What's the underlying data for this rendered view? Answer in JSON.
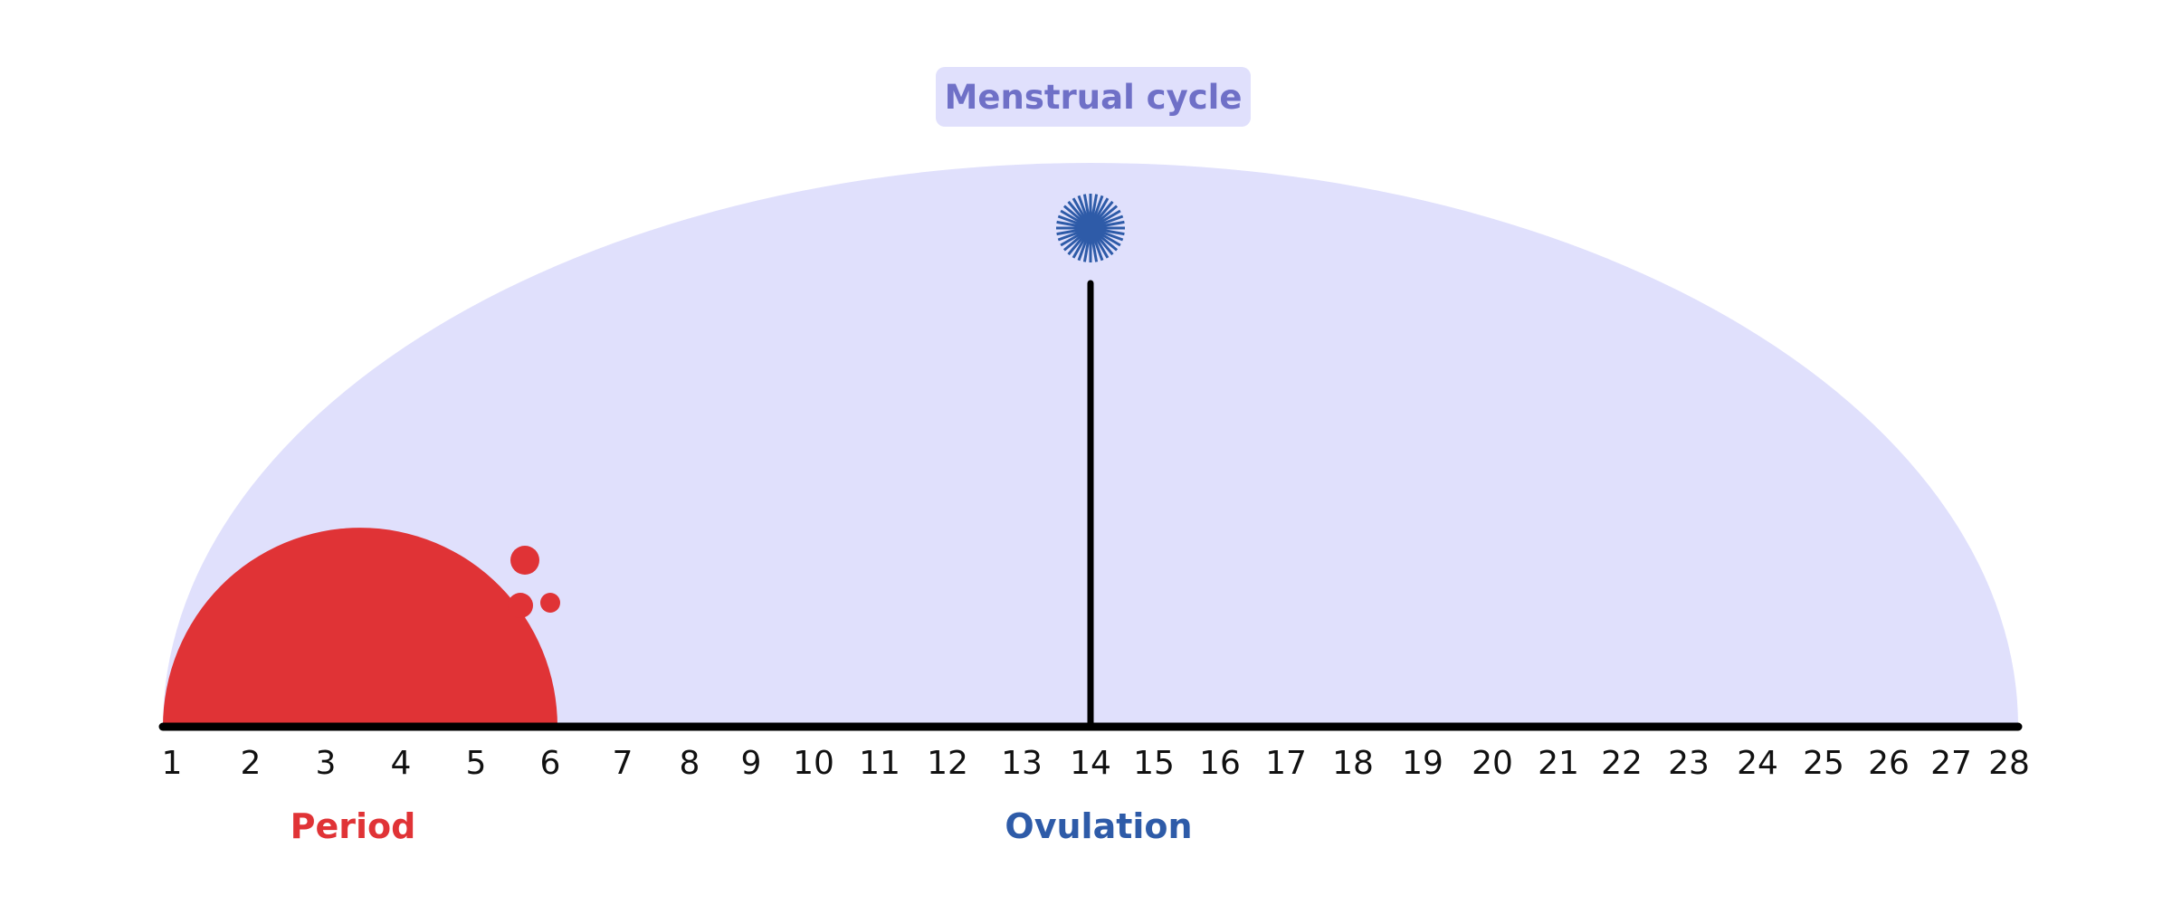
{
  "diagram": {
    "title": "Menstrual cycle",
    "days": [
      "1",
      "2",
      "3",
      "4",
      "5",
      "6",
      "7",
      "8",
      "9",
      "10",
      "11",
      "12",
      "13",
      "14",
      "15",
      "16",
      "17",
      "18",
      "19",
      "20",
      "21",
      "22",
      "23",
      "24",
      "25",
      "26",
      "27",
      "28"
    ],
    "period": {
      "label": "Period",
      "start_day": 1,
      "end_day": 6
    },
    "ovulation": {
      "label": "Ovulation",
      "day": 14
    },
    "colors": {
      "cycle_fill": "#E0E0FC",
      "title_bg": "#E0E0FC",
      "title_text": "#6F70C7",
      "period": "#E03336",
      "ovulation": "#2E5BA8",
      "axis": "#000000"
    }
  }
}
